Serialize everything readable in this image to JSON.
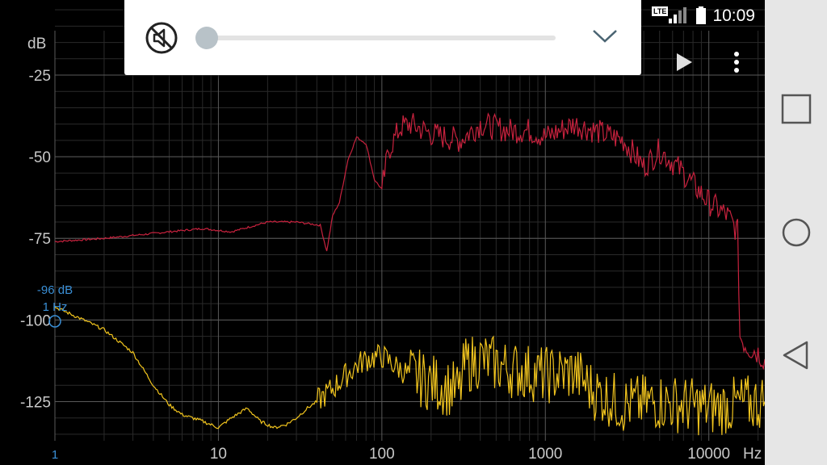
{
  "status_bar": {
    "time": "10:09",
    "network_label": "LTE"
  },
  "volume_panel": {
    "level": 0,
    "mute_icon": "volume-off-icon",
    "expand_icon": "chevron-down-icon"
  },
  "toolbar": {
    "play_icon": "play-icon",
    "menu_icon": "more-vert-icon"
  },
  "nav_bar": {
    "recents_icon": "square-icon",
    "home_icon": "circle-icon",
    "back_icon": "triangle-back-icon"
  },
  "cursor_readout": {
    "db": "-96 dB",
    "freq": "1 Hz"
  },
  "colors": {
    "background": "#000000",
    "grid": "#3a3a3a",
    "series_1": "#c8223e",
    "series_2": "#f2c51e",
    "readout": "#3a8fd6",
    "axis_text": "#c8c8c8"
  },
  "chart_data": {
    "type": "line",
    "title": "",
    "ylabel": "dB",
    "xlabel": "Hz",
    "x_scale": "log",
    "xlim": [
      1,
      22000
    ],
    "ylim": [
      -137,
      -2
    ],
    "y_ticks": [
      "-25",
      "-50",
      "-75",
      "-100",
      "-125"
    ],
    "y_tick_values": [
      -25,
      -50,
      -75,
      -100,
      -125
    ],
    "x_ticks": [
      "1",
      "10",
      "100",
      "1000",
      "10000"
    ],
    "x_tick_values": [
      1,
      10,
      100,
      1000,
      10000
    ],
    "grid": true,
    "series": [
      {
        "color": "#c8223e",
        "x": [
          1,
          2,
          5,
          8,
          12,
          20,
          30,
          42,
          46,
          50,
          55,
          62,
          70,
          80,
          90,
          100,
          110,
          130,
          150,
          200,
          300,
          400,
          600,
          800,
          1000,
          1500,
          2000,
          3000,
          4000,
          5000,
          7000,
          10000,
          13000,
          15000,
          15500,
          17000,
          20000,
          22000
        ],
        "y": [
          -76,
          -75,
          -73,
          -72,
          -73,
          -70,
          -70,
          -71,
          -79,
          -68,
          -64,
          -51,
          -44,
          -46,
          -57,
          -60,
          -48,
          -41,
          -40,
          -43,
          -45,
          -40,
          -42,
          -42,
          -44,
          -40,
          -42,
          -45,
          -53,
          -48,
          -55,
          -64,
          -68,
          -73,
          -105,
          -108,
          -110,
          -112
        ]
      },
      {
        "color": "#f2c51e",
        "x": [
          1,
          1.5,
          2,
          3,
          4,
          5,
          6,
          8,
          10,
          12,
          15,
          18,
          22,
          26,
          30,
          35,
          40,
          50,
          60,
          70,
          80,
          100,
          120,
          150,
          200,
          300,
          320,
          400,
          600,
          800,
          1000,
          1500,
          2000,
          3000,
          5000,
          10000,
          15000,
          22000
        ],
        "y": [
          -96,
          -100,
          -103,
          -110,
          -120,
          -126,
          -129,
          -131,
          -133,
          -130,
          -127,
          -131,
          -133,
          -132,
          -130,
          -127,
          -125,
          -121,
          -117,
          -114,
          -112,
          -111,
          -114,
          -117,
          -119,
          -122,
          -114,
          -112,
          -115,
          -116,
          -117,
          -116,
          -122,
          -126,
          -125,
          -127,
          -126,
          -125
        ]
      }
    ]
  }
}
